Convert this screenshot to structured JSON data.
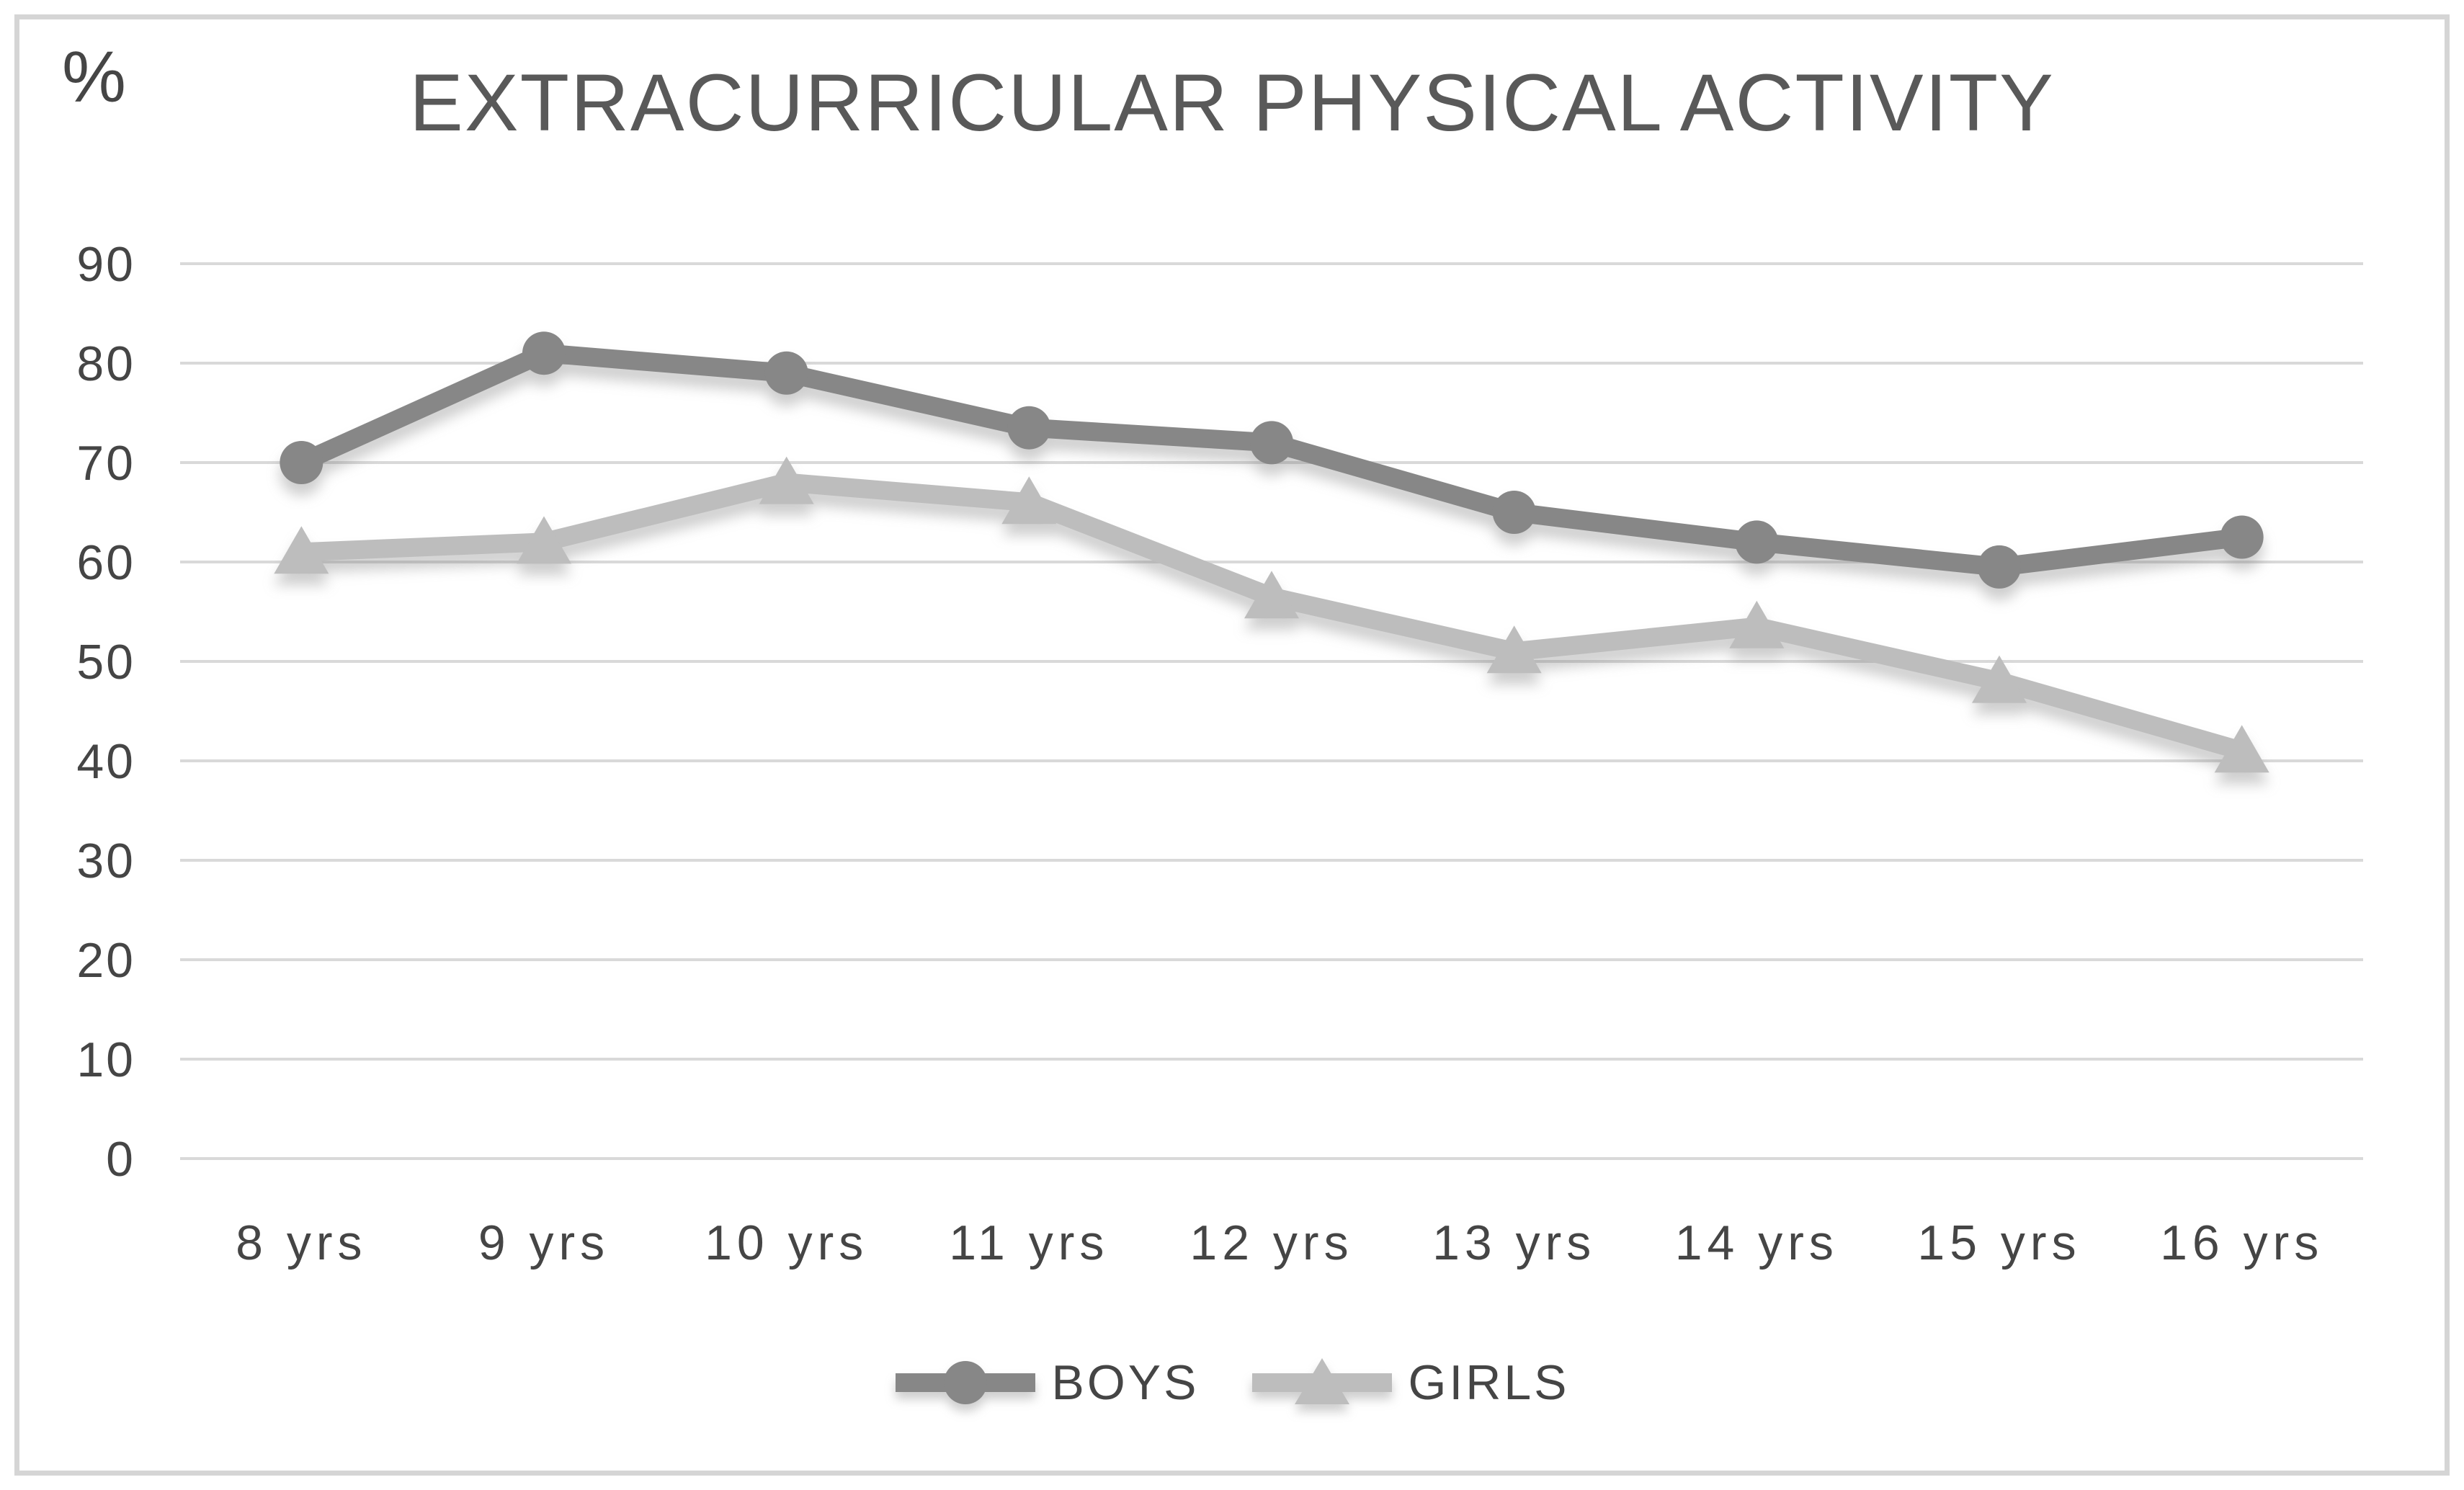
{
  "window": {
    "background": "#ffffff",
    "frame_border_color": "#d5d5d5"
  },
  "chart_data": {
    "type": "line",
    "title": "EXTRACURRICULAR PHYSICAL ACTIVITY",
    "y_unit": "%",
    "categories": [
      "8 yrs",
      "9 yrs",
      "10 yrs",
      "11 yrs",
      "12 yrs",
      "13 yrs",
      "14 yrs",
      "15 yrs",
      "16 yrs"
    ],
    "series": [
      {
        "name": "BOYS",
        "marker": "circle",
        "color": "#878787",
        "values": [
          70,
          81,
          79,
          73.5,
          72,
          65,
          62,
          59.5,
          62.5
        ]
      },
      {
        "name": "GIRLS",
        "marker": "triangle",
        "color": "#bdbdbd",
        "values": [
          61,
          62,
          68,
          66,
          56.5,
          51,
          53.5,
          48,
          41
        ]
      }
    ],
    "ylim": [
      0,
      90
    ],
    "yticks": [
      0,
      10,
      20,
      30,
      40,
      50,
      60,
      70,
      80,
      90
    ],
    "grid": true,
    "gridline_color": "#d9d9d9",
    "tick_label_color": "#454545",
    "title_color": "#595959",
    "legend_position": "bottom"
  }
}
